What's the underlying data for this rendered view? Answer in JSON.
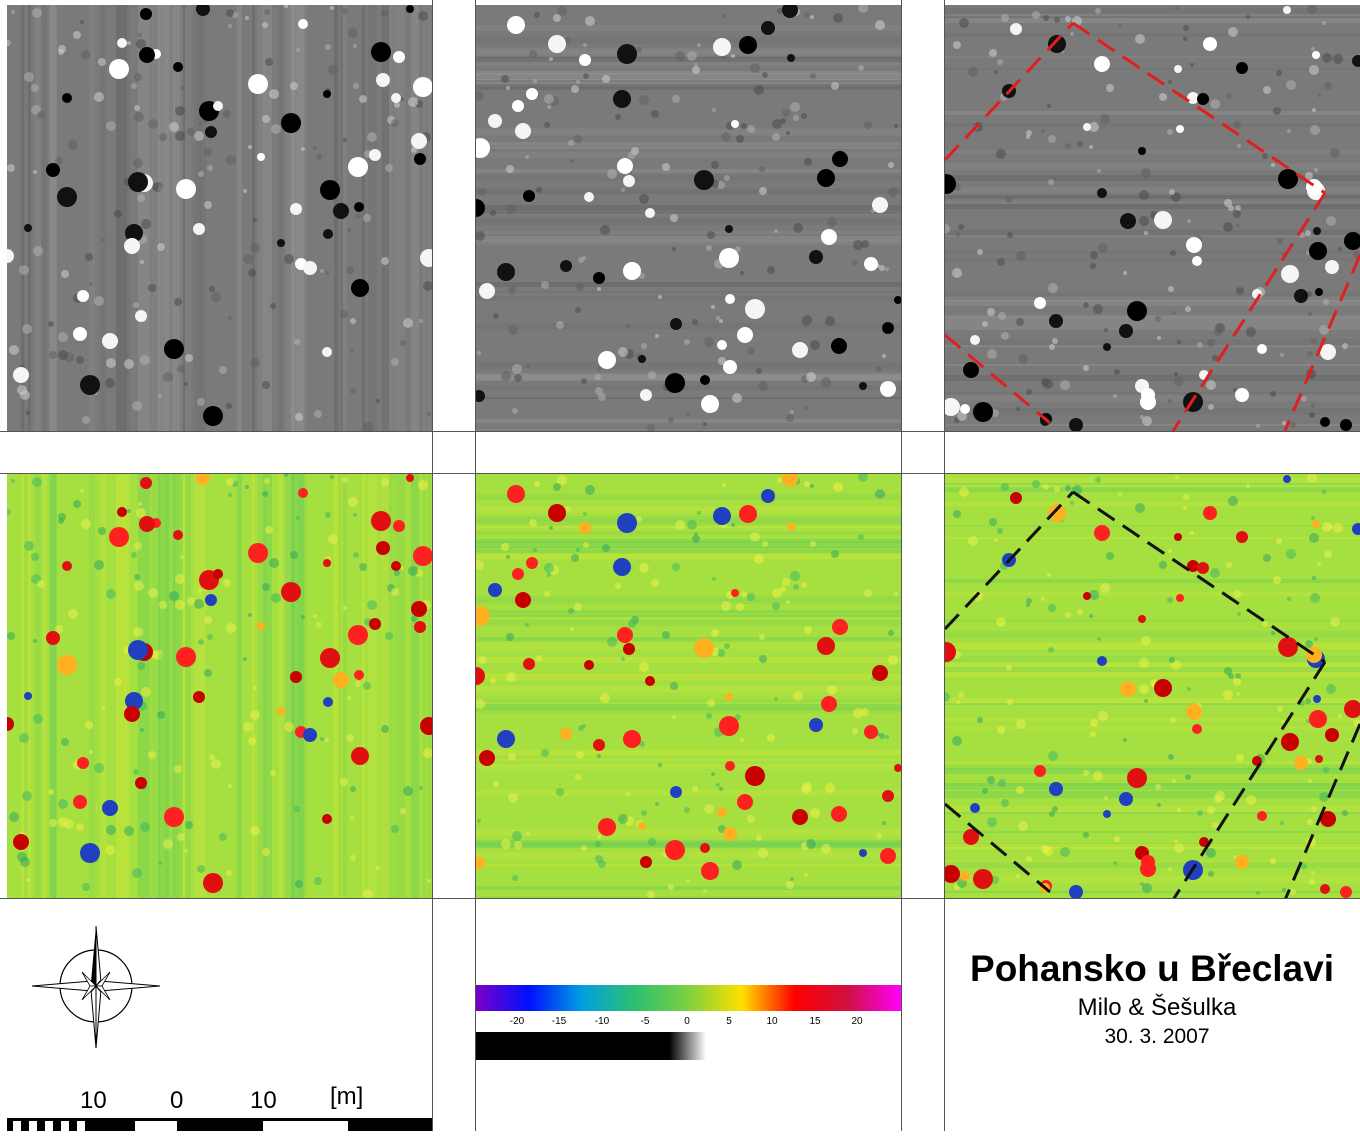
{
  "legend": {
    "title": "Pohansko u Břeclavi",
    "authors": "Milo & Šešulka",
    "date": "30. 3. 2007"
  },
  "scale_bar": {
    "labels": [
      "10",
      "0",
      "10"
    ],
    "unit": "[m]"
  },
  "colorbar": {
    "ticks": [
      "-20",
      "-15",
      "-10",
      "-5",
      "0",
      "5",
      "10",
      "15",
      "20"
    ],
    "gradient": [
      "#7a00c8",
      "#0010ff",
      "#00a0e0",
      "#2ec070",
      "#7ed040",
      "#ffe000",
      "#ff0000",
      "#d01040",
      "#ff00ff"
    ]
  },
  "panels": {
    "grayscale": [
      "grayscale-panel-1",
      "grayscale-panel-2",
      "grayscale-panel-3"
    ],
    "color": [
      "color-panel-1",
      "color-panel-2",
      "color-panel-3"
    ]
  },
  "overlay": {
    "gray_line_color": "#e02020",
    "color_line_color": "#111111"
  },
  "icons": {
    "north_arrow": "compass-rose-icon"
  }
}
